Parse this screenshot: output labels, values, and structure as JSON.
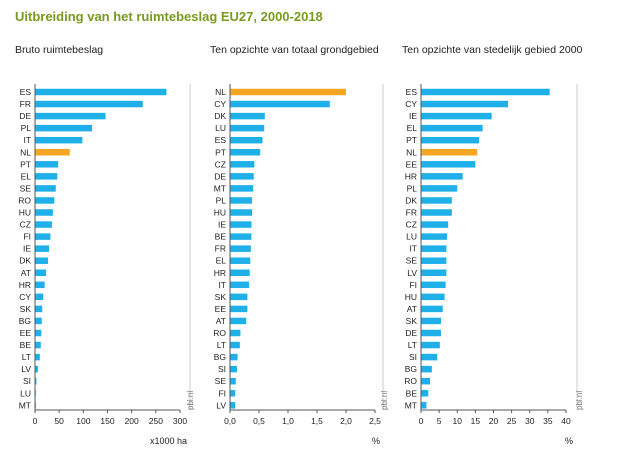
{
  "title": "Uitbreiding van het ruimtebeslag EU27, 2000-2018",
  "source": "pbl.nl",
  "colors": {
    "bar": "#1fb0ea",
    "highlight": "#f6a623",
    "axis": "#555555",
    "title": "#7a9a1f",
    "panel_border": "#cccccc"
  },
  "chart_data": [
    {
      "type": "bar",
      "orientation": "horizontal",
      "title": "Bruto ruimtebeslag",
      "xlabel": "x1000 ha",
      "xlim": [
        0,
        300
      ],
      "xticks": [
        0,
        50,
        100,
        150,
        200,
        250,
        300
      ],
      "xtick_labels": [
        "0",
        "50",
        "100",
        "150",
        "200",
        "250",
        "300"
      ],
      "categories": [
        "ES",
        "FR",
        "DE",
        "PL",
        "IT",
        "NL",
        "PT",
        "EL",
        "SE",
        "RO",
        "HU",
        "CZ",
        "FI",
        "IE",
        "DK",
        "AT",
        "HR",
        "CY",
        "SK",
        "BG",
        "EE",
        "BE",
        "LT",
        "LV",
        "SI",
        "LU",
        "MT"
      ],
      "values": [
        272,
        223,
        146,
        118,
        98,
        72,
        48,
        46,
        43,
        40,
        37,
        35,
        32,
        29,
        27,
        23,
        20,
        17,
        15,
        14,
        13,
        12,
        10,
        6,
        3,
        1,
        0.5
      ],
      "highlight": "NL"
    },
    {
      "type": "bar",
      "orientation": "horizontal",
      "title": "Ten opzichte van totaal grondgebied",
      "xlabel": "%",
      "xlim": [
        0,
        2.5
      ],
      "xticks": [
        0,
        0.5,
        1,
        1.5,
        2,
        2.5
      ],
      "xtick_labels": [
        "0,0",
        "0,5",
        "1,0",
        "1,5",
        "2,0",
        "2,5"
      ],
      "categories": [
        "NL",
        "CY",
        "DK",
        "LU",
        "ES",
        "PT",
        "CZ",
        "DE",
        "MT",
        "PL",
        "HU",
        "IE",
        "BE",
        "FR",
        "EL",
        "HR",
        "IT",
        "SK",
        "EE",
        "AT",
        "RO",
        "LT",
        "BG",
        "SI",
        "SE",
        "FI",
        "LV"
      ],
      "values": [
        2.0,
        1.72,
        0.6,
        0.59,
        0.56,
        0.52,
        0.42,
        0.41,
        0.4,
        0.38,
        0.38,
        0.37,
        0.37,
        0.36,
        0.35,
        0.34,
        0.33,
        0.3,
        0.3,
        0.28,
        0.18,
        0.17,
        0.13,
        0.12,
        0.1,
        0.09,
        0.09
      ],
      "highlight": "NL"
    },
    {
      "type": "bar",
      "orientation": "horizontal",
      "title": "Ten opzichte van stedelijk gebied 2000",
      "xlabel": "%",
      "xlim": [
        0,
        40
      ],
      "xticks": [
        0,
        5,
        10,
        15,
        20,
        25,
        30,
        35,
        40
      ],
      "xtick_labels": [
        "0",
        "5",
        "10",
        "15",
        "20",
        "25",
        "30",
        "35",
        "40"
      ],
      "categories": [
        "ES",
        "CY",
        "IE",
        "EL",
        "PT",
        "NL",
        "EE",
        "HR",
        "PL",
        "DK",
        "FR",
        "CZ",
        "LU",
        "IT",
        "SE",
        "LV",
        "FI",
        "HU",
        "AT",
        "SK",
        "DE",
        "LT",
        "SI",
        "BG",
        "RO",
        "BE",
        "MT"
      ],
      "values": [
        35.5,
        24,
        19.5,
        17,
        16,
        15.5,
        15,
        11.5,
        10,
        8.5,
        8.5,
        7.5,
        7.2,
        7.0,
        7.0,
        7.0,
        6.8,
        6.5,
        6.0,
        5.5,
        5.5,
        5.2,
        4.5,
        3.0,
        2.5,
        2.0,
        1.5
      ],
      "highlight": "NL"
    }
  ]
}
